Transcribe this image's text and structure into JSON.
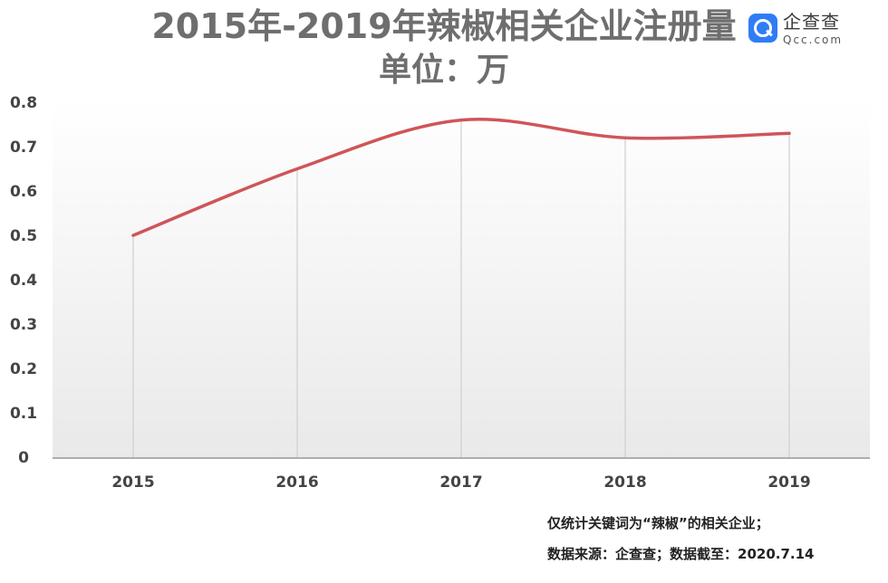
{
  "header": {
    "title": "2015年-2019年辣椒相关企业注册量",
    "subtitle": "单位：万"
  },
  "logo": {
    "cn": "企查查",
    "en": "Qcc.com",
    "icon": "qcc-logo-icon",
    "color": "#2f7df6"
  },
  "notes": {
    "line1": "仅统计关键词为“辣椒”的相关企业；",
    "line2": "数据来源：企查查；数据截至：2020.7.14"
  },
  "chart_data": {
    "type": "line",
    "title": "2015年-2019年辣椒相关企业注册量",
    "ylabel": "单位：万",
    "xlabel": "",
    "categories": [
      "2015",
      "2016",
      "2017",
      "2018",
      "2019"
    ],
    "series": [
      {
        "values": [
          0.5,
          0.65,
          0.76,
          0.72,
          0.73
        ],
        "color": "#cf5558"
      }
    ],
    "ylim": [
      0,
      0.8
    ],
    "yticks": [
      "0",
      "0.1",
      "0.2",
      "0.3",
      "0.4",
      "0.5",
      "0.6",
      "0.7",
      "0.8"
    ],
    "smooth": true,
    "drop_lines": true,
    "legend": "none"
  }
}
